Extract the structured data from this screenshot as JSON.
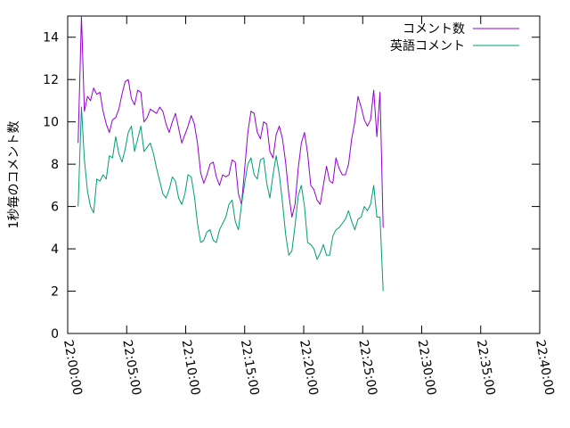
{
  "chart_data": {
    "type": "line",
    "title": "",
    "xlabel": "",
    "ylabel": "1秒毎のコメント数",
    "ylim": [
      0,
      15
    ],
    "yticks": [
      0,
      2,
      4,
      6,
      8,
      10,
      12,
      14
    ],
    "xlim": [
      "22:00:00",
      "22:40:00"
    ],
    "xticks": [
      "22:00:00",
      "22:05:00",
      "22:10:00",
      "22:15:00",
      "22:20:00",
      "22:25:00",
      "22:30:00",
      "22:35:00",
      "22:40:00"
    ],
    "x_rotation_deg": 80,
    "grid": false,
    "legend_position": "top-right",
    "series": [
      {
        "name": "コメント数",
        "color": "#9400d3",
        "points": [
          [
            "22:00:53",
            9.0
          ],
          [
            "22:01:10",
            15.0
          ],
          [
            "22:01:25",
            10.5
          ],
          [
            "22:01:41",
            11.2
          ],
          [
            "22:01:56",
            11.0
          ],
          [
            "22:02:12",
            11.6
          ],
          [
            "22:02:28",
            11.3
          ],
          [
            "22:02:44",
            11.4
          ],
          [
            "22:03:00",
            10.5
          ],
          [
            "22:03:16",
            9.9
          ],
          [
            "22:03:32",
            9.5
          ],
          [
            "22:03:48",
            10.1
          ],
          [
            "22:04:04",
            10.2
          ],
          [
            "22:04:20",
            10.6
          ],
          [
            "22:04:36",
            11.3
          ],
          [
            "22:04:52",
            11.9
          ],
          [
            "22:05:08",
            12.0
          ],
          [
            "22:05:24",
            11.1
          ],
          [
            "22:05:40",
            10.8
          ],
          [
            "22:05:56",
            11.5
          ],
          [
            "22:06:12",
            11.4
          ],
          [
            "22:06:28",
            10.0
          ],
          [
            "22:06:44",
            10.2
          ],
          [
            "22:07:00",
            10.6
          ],
          [
            "22:07:16",
            10.5
          ],
          [
            "22:07:32",
            10.4
          ],
          [
            "22:07:48",
            10.7
          ],
          [
            "22:08:04",
            10.5
          ],
          [
            "22:08:20",
            9.9
          ],
          [
            "22:08:36",
            9.5
          ],
          [
            "22:08:52",
            10.0
          ],
          [
            "22:09:08",
            10.4
          ],
          [
            "22:09:24",
            9.7
          ],
          [
            "22:09:40",
            9.0
          ],
          [
            "22:09:56",
            9.4
          ],
          [
            "22:10:12",
            9.8
          ],
          [
            "22:10:28",
            10.3
          ],
          [
            "22:10:44",
            9.9
          ],
          [
            "22:11:00",
            9.0
          ],
          [
            "22:11:16",
            7.6
          ],
          [
            "22:11:32",
            7.1
          ],
          [
            "22:11:48",
            7.5
          ],
          [
            "22:12:04",
            8.0
          ],
          [
            "22:12:20",
            8.1
          ],
          [
            "22:12:36",
            7.4
          ],
          [
            "22:12:52",
            7.0
          ],
          [
            "22:13:08",
            7.5
          ],
          [
            "22:13:24",
            7.4
          ],
          [
            "22:13:40",
            7.5
          ],
          [
            "22:13:56",
            8.2
          ],
          [
            "22:14:12",
            8.1
          ],
          [
            "22:14:28",
            6.6
          ],
          [
            "22:14:44",
            6.1
          ],
          [
            "22:15:00",
            7.8
          ],
          [
            "22:15:16",
            9.5
          ],
          [
            "22:15:32",
            10.5
          ],
          [
            "22:15:48",
            10.4
          ],
          [
            "22:16:04",
            9.5
          ],
          [
            "22:16:20",
            9.2
          ],
          [
            "22:16:36",
            10.0
          ],
          [
            "22:16:52",
            9.9
          ],
          [
            "22:17:08",
            8.6
          ],
          [
            "22:17:24",
            8.3
          ],
          [
            "22:17:40",
            9.4
          ],
          [
            "22:17:56",
            9.8
          ],
          [
            "22:18:12",
            9.2
          ],
          [
            "22:18:28",
            8.1
          ],
          [
            "22:18:44",
            6.6
          ],
          [
            "22:19:00",
            5.5
          ],
          [
            "22:19:16",
            6.1
          ],
          [
            "22:19:32",
            7.8
          ],
          [
            "22:19:48",
            9.0
          ],
          [
            "22:20:04",
            9.5
          ],
          [
            "22:20:20",
            8.5
          ],
          [
            "22:20:36",
            7.0
          ],
          [
            "22:20:52",
            6.8
          ],
          [
            "22:21:08",
            6.3
          ],
          [
            "22:21:24",
            6.1
          ],
          [
            "22:21:40",
            7.0
          ],
          [
            "22:21:56",
            7.9
          ],
          [
            "22:22:12",
            7.2
          ],
          [
            "22:22:28",
            7.1
          ],
          [
            "22:22:44",
            8.3
          ],
          [
            "22:23:00",
            7.8
          ],
          [
            "22:23:16",
            7.5
          ],
          [
            "22:23:32",
            7.5
          ],
          [
            "22:23:48",
            8.0
          ],
          [
            "22:24:04",
            9.2
          ],
          [
            "22:24:20",
            10.0
          ],
          [
            "22:24:36",
            11.2
          ],
          [
            "22:24:52",
            10.7
          ],
          [
            "22:25:08",
            10.1
          ],
          [
            "22:25:24",
            9.8
          ],
          [
            "22:25:40",
            10.1
          ],
          [
            "22:25:56",
            11.5
          ],
          [
            "22:26:12",
            9.3
          ],
          [
            "22:26:28",
            11.4
          ],
          [
            "22:26:44",
            5.0
          ]
        ]
      },
      {
        "name": "英語コメント",
        "color": "#009e73",
        "points": [
          [
            "22:00:53",
            6.0
          ],
          [
            "22:01:10",
            10.7
          ],
          [
            "22:01:25",
            8.2
          ],
          [
            "22:01:41",
            6.7
          ],
          [
            "22:01:56",
            6.0
          ],
          [
            "22:02:12",
            5.7
          ],
          [
            "22:02:28",
            7.3
          ],
          [
            "22:02:44",
            7.2
          ],
          [
            "22:03:00",
            7.5
          ],
          [
            "22:03:16",
            7.3
          ],
          [
            "22:03:32",
            8.4
          ],
          [
            "22:03:48",
            8.3
          ],
          [
            "22:04:04",
            9.3
          ],
          [
            "22:04:20",
            8.5
          ],
          [
            "22:04:36",
            8.1
          ],
          [
            "22:04:52",
            8.7
          ],
          [
            "22:05:08",
            9.5
          ],
          [
            "22:05:24",
            9.8
          ],
          [
            "22:05:40",
            8.6
          ],
          [
            "22:05:56",
            9.2
          ],
          [
            "22:06:12",
            9.8
          ],
          [
            "22:06:28",
            8.6
          ],
          [
            "22:06:44",
            8.8
          ],
          [
            "22:07:00",
            9.0
          ],
          [
            "22:07:16",
            8.5
          ],
          [
            "22:07:32",
            7.8
          ],
          [
            "22:07:48",
            7.2
          ],
          [
            "22:08:04",
            6.6
          ],
          [
            "22:08:20",
            6.4
          ],
          [
            "22:08:36",
            6.8
          ],
          [
            "22:08:52",
            7.4
          ],
          [
            "22:09:08",
            7.2
          ],
          [
            "22:09:24",
            6.4
          ],
          [
            "22:09:40",
            6.1
          ],
          [
            "22:09:56",
            6.6
          ],
          [
            "22:10:12",
            7.5
          ],
          [
            "22:10:28",
            7.4
          ],
          [
            "22:10:44",
            6.5
          ],
          [
            "22:11:00",
            5.2
          ],
          [
            "22:11:16",
            4.3
          ],
          [
            "22:11:32",
            4.4
          ],
          [
            "22:11:48",
            4.8
          ],
          [
            "22:12:04",
            4.9
          ],
          [
            "22:12:20",
            4.4
          ],
          [
            "22:12:36",
            4.3
          ],
          [
            "22:12:52",
            4.9
          ],
          [
            "22:13:08",
            5.2
          ],
          [
            "22:13:24",
            5.5
          ],
          [
            "22:13:40",
            6.1
          ],
          [
            "22:13:56",
            6.3
          ],
          [
            "22:14:12",
            5.3
          ],
          [
            "22:14:28",
            4.9
          ],
          [
            "22:14:44",
            6.1
          ],
          [
            "22:15:00",
            7.1
          ],
          [
            "22:15:16",
            8.0
          ],
          [
            "22:15:32",
            8.3
          ],
          [
            "22:15:48",
            7.5
          ],
          [
            "22:16:04",
            7.3
          ],
          [
            "22:16:20",
            8.2
          ],
          [
            "22:16:36",
            8.3
          ],
          [
            "22:16:52",
            7.1
          ],
          [
            "22:17:08",
            6.4
          ],
          [
            "22:17:24",
            7.5
          ],
          [
            "22:17:40",
            8.4
          ],
          [
            "22:17:56",
            7.5
          ],
          [
            "22:18:12",
            6.2
          ],
          [
            "22:18:28",
            4.7
          ],
          [
            "22:18:44",
            3.7
          ],
          [
            "22:19:00",
            3.9
          ],
          [
            "22:19:16",
            5.1
          ],
          [
            "22:19:32",
            6.5
          ],
          [
            "22:19:48",
            7.0
          ],
          [
            "22:20:04",
            6.0
          ],
          [
            "22:20:20",
            4.3
          ],
          [
            "22:20:36",
            4.2
          ],
          [
            "22:20:52",
            4.0
          ],
          [
            "22:21:08",
            3.5
          ],
          [
            "22:21:24",
            3.8
          ],
          [
            "22:21:40",
            4.2
          ],
          [
            "22:21:56",
            3.7
          ],
          [
            "22:22:12",
            3.7
          ],
          [
            "22:22:28",
            4.6
          ],
          [
            "22:22:44",
            4.9
          ],
          [
            "22:23:00",
            5.0
          ],
          [
            "22:23:16",
            5.2
          ],
          [
            "22:23:32",
            5.4
          ],
          [
            "22:23:48",
            5.8
          ],
          [
            "22:24:04",
            5.3
          ],
          [
            "22:24:20",
            4.9
          ],
          [
            "22:24:36",
            5.4
          ],
          [
            "22:24:52",
            5.5
          ],
          [
            "22:25:08",
            6.0
          ],
          [
            "22:25:24",
            5.8
          ],
          [
            "22:25:40",
            6.1
          ],
          [
            "22:25:56",
            7.0
          ],
          [
            "22:26:12",
            5.5
          ],
          [
            "22:26:28",
            5.5
          ],
          [
            "22:26:44",
            2.0
          ]
        ]
      }
    ]
  }
}
